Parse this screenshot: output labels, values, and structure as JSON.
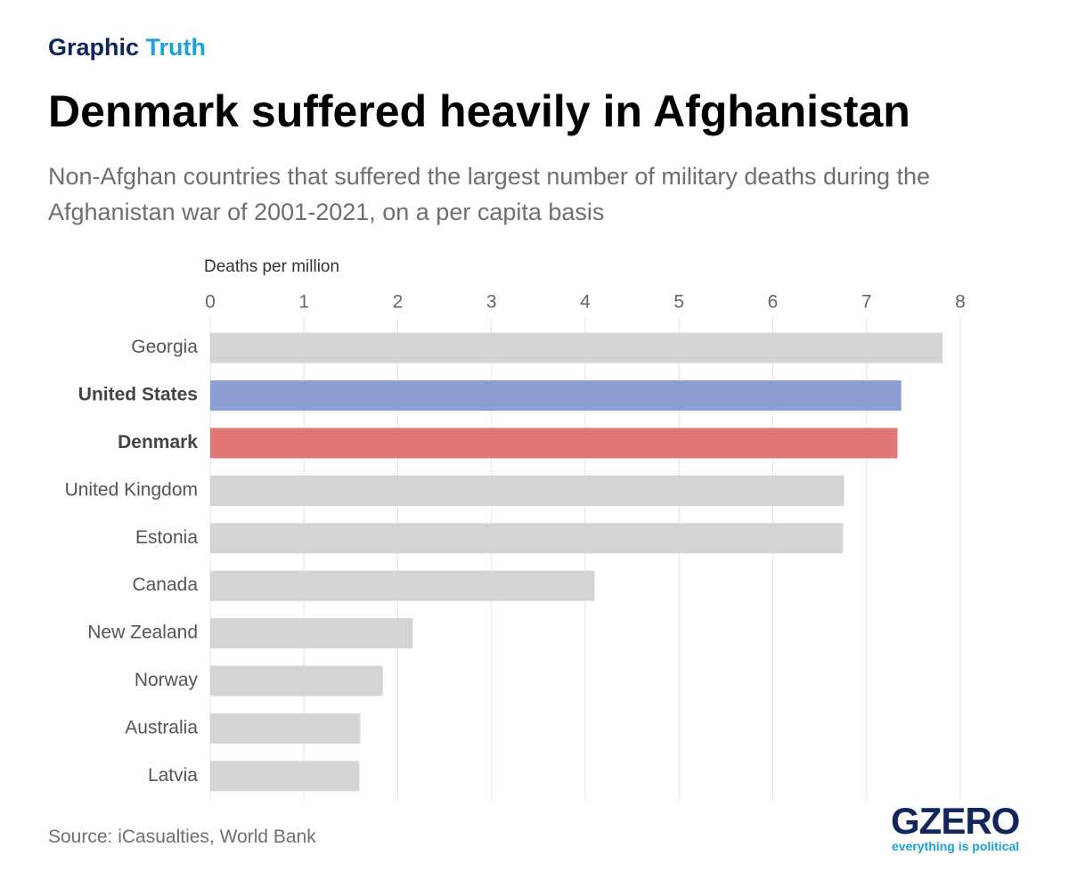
{
  "header": {
    "kicker_part1": "Graphic",
    "kicker_part2": "Truth"
  },
  "chart_data": {
    "type": "hbar",
    "title": "Denmark suffered heavily in Afghanistan",
    "subtitle": "Non-Afghan countries that suffered the largest number of military deaths during the Afghanistan war of 2001-2021, on a per capita basis",
    "x_label": "Deaths per million",
    "categories": [
      "Georgia",
      "United States",
      "Denmark",
      "United Kingdom",
      "Estonia",
      "Canada",
      "New Zealand",
      "Norway",
      "Australia",
      "Latvia"
    ],
    "values": [
      7.81,
      7.37,
      7.33,
      6.76,
      6.75,
      4.1,
      2.16,
      1.84,
      1.6,
      1.59
    ],
    "color": "#d3d4d6",
    "colors": [
      "#d3d4d6",
      "#8a9ed2",
      "#e07676",
      "#d3d4d6",
      "#d3d4d6",
      "#d3d4d6",
      "#d3d4d6",
      "#d3d4d6",
      "#d3d4d6",
      "#d3d4d6"
    ],
    "xlim": [
      0,
      8
    ],
    "xticks": [
      0,
      1,
      2,
      3,
      4,
      5,
      6,
      7,
      8
    ],
    "grid": true,
    "source": "Source: iCasualties, World Bank"
  },
  "logo": {
    "name": "GZERO",
    "tagline": "everything is political"
  }
}
